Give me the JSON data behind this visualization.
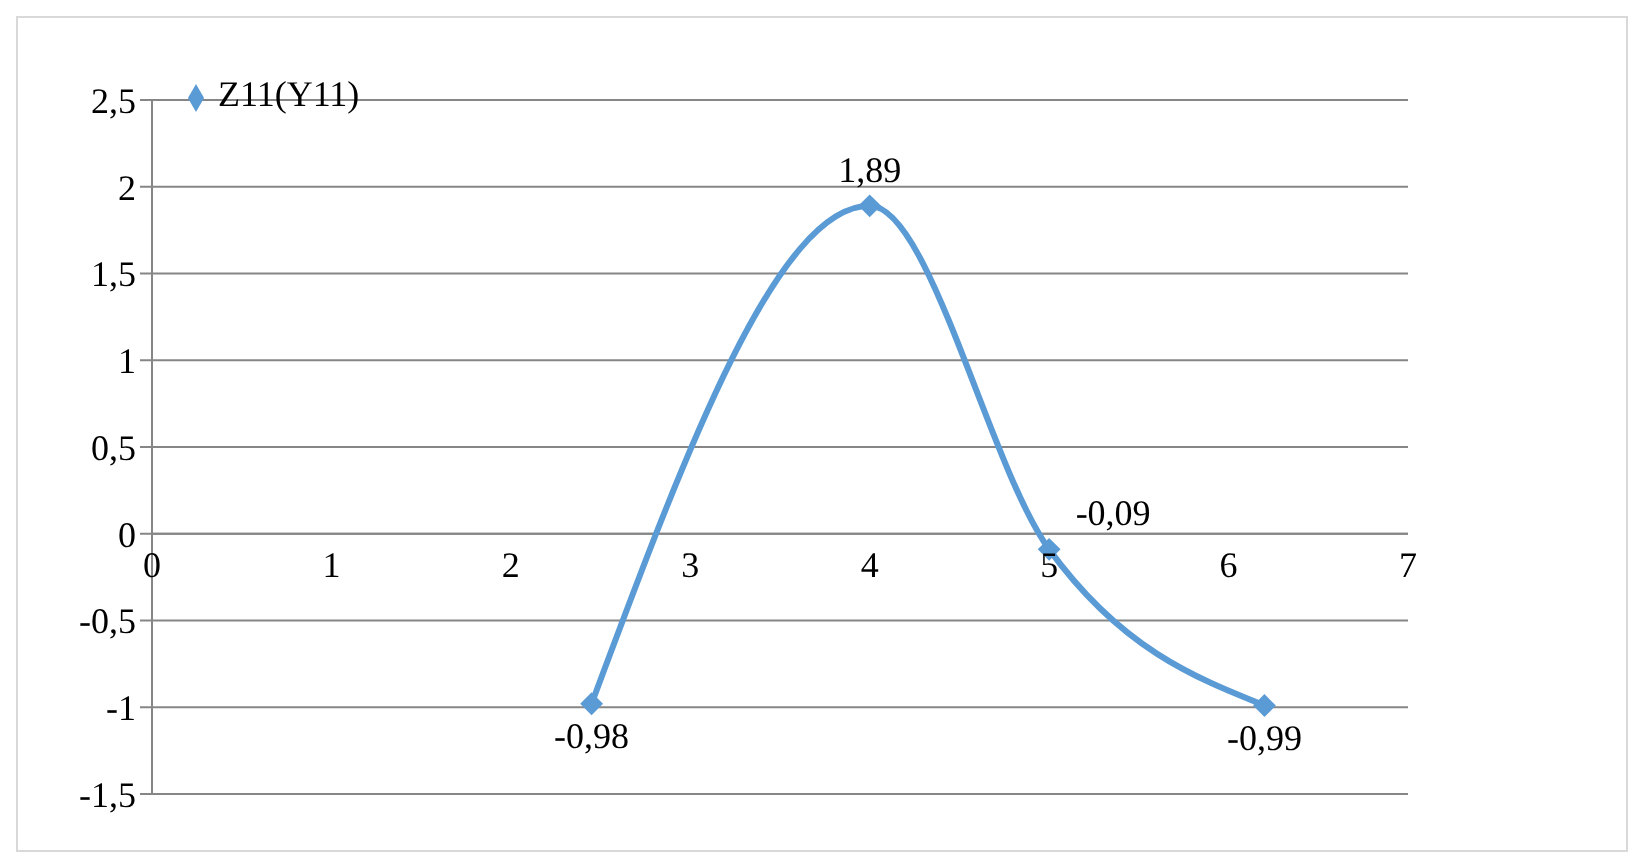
{
  "chart_data": {
    "type": "line",
    "series": [
      {
        "name": "Z11(Y11)",
        "color": "#5b9bd5",
        "x": [
          2.45,
          4,
          5,
          6.2
        ],
        "values": [
          -0.98,
          1.89,
          -0.09,
          -0.99
        ],
        "value_labels": [
          "-0,98",
          "1,89",
          "-0,09",
          "-0,99"
        ]
      }
    ],
    "xlim": [
      0,
      7
    ],
    "xticks": [
      0,
      1,
      2,
      3,
      4,
      5,
      6,
      7
    ],
    "ylim": [
      -1.5,
      2.5
    ],
    "yticks": [
      {
        "value": -1.5,
        "label": "-1,5"
      },
      {
        "value": -1,
        "label": "-1"
      },
      {
        "value": -0.5,
        "label": "-0,5"
      },
      {
        "value": 0,
        "label": "0"
      },
      {
        "value": 0.5,
        "label": "0,5"
      },
      {
        "value": 1,
        "label": "1"
      },
      {
        "value": 1.5,
        "label": "1,5"
      },
      {
        "value": 2,
        "label": "2"
      },
      {
        "value": 2.5,
        "label": "2,5"
      }
    ],
    "grid": "y",
    "legend": "top left",
    "marker": "diamond",
    "line_style": "solid"
  }
}
